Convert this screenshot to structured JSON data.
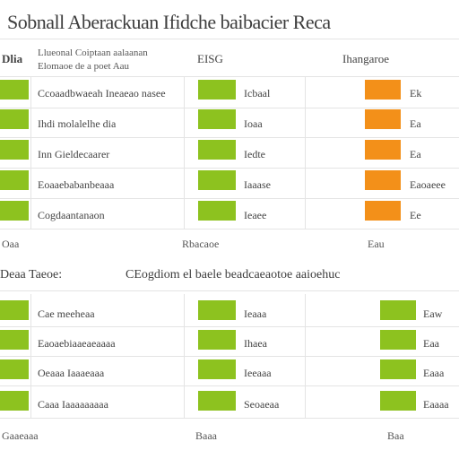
{
  "title": "Sobnall Aberackuan Ifidche baibacier Reca",
  "section1": {
    "col1": {
      "header": "Dlia",
      "subheader_1": "Llueonal Coiptaan aalaanan",
      "subheader_2": "Elomaoe de a poet Aau"
    },
    "col2": {
      "header": "EISG"
    },
    "col3": {
      "header": "Ihangaroe"
    },
    "rows": [
      {
        "label": "Ccoaadbwaeah Ineaeao nasee",
        "value": "Icbaal",
        "right": "Ek"
      },
      {
        "label": "Ihdi molalelhe dia",
        "value": "Ioaa",
        "right": "Ea"
      },
      {
        "label": "Inn Gieldecaarer",
        "value": "Iedte",
        "right": "Ea"
      },
      {
        "label": "Eoaaebabanbeaaa",
        "value": "Iaaase",
        "right": "Eaoaeee"
      },
      {
        "label": "Cogdaantanaon",
        "value": "Ieaee",
        "right": "Ee"
      }
    ],
    "footer": {
      "left": "Oaa",
      "center": "Rbacaoe",
      "right": "Eau"
    }
  },
  "section2": {
    "left_title": "Deaa Taeoe:",
    "center_title": "CEogdiom el baele beadcaeaotoe aaioehuc",
    "rows": [
      {
        "label": "Cae meeheaa",
        "value": "Ieaaa",
        "right": "Eaw"
      },
      {
        "label": "Eaoaebiaaeaeaaaa",
        "value": "Ihaea",
        "right": "Eaa"
      },
      {
        "label": "Oeaaa Iaaaeaaa",
        "value": "Ieeaaa",
        "right": "Eaaa"
      },
      {
        "label": "Caaa Iaaaaaaaaa",
        "value": "Seoaeaa",
        "right": "Eaaaa"
      }
    ],
    "footer": {
      "left": "Gaaeaaa",
      "center": "Baaa",
      "right": "Baa"
    }
  },
  "colors": {
    "green": "#8dc21f",
    "orange": "#f39019"
  }
}
